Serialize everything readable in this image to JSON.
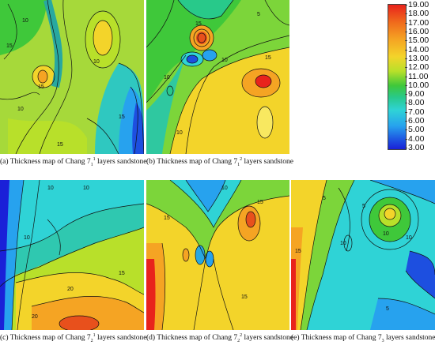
{
  "panels": [
    {
      "id": "a",
      "caption_pre": "(a) Thickness map of Chang 7",
      "caption_sub": "1",
      "caption_sup": "1",
      "caption_post": " layers sandstone",
      "contour_labels": [
        "10",
        "15",
        "10",
        "15",
        "10",
        "15",
        "15"
      ]
    },
    {
      "id": "b",
      "caption_pre": "(b) Thickness map of Chang 7",
      "caption_sub": "1",
      "caption_sup": "2",
      "caption_post": " layers sandstone",
      "contour_labels": [
        "5",
        "15",
        "10",
        "10",
        "15",
        "10"
      ]
    },
    {
      "id": "c",
      "caption_pre": "(c) Thickness map of Chang 7",
      "caption_sub": "2",
      "caption_sup": "1",
      "caption_post": " layers sandstone",
      "contour_labels": [
        "10",
        "10",
        "10",
        "20",
        "20",
        "15"
      ]
    },
    {
      "id": "d",
      "caption_pre": "(d) Thickness map of Chang 7",
      "caption_sub": "2",
      "caption_sup": "2",
      "caption_post": " layers sandstone",
      "contour_labels": [
        "10",
        "15",
        "15",
        "15"
      ]
    },
    {
      "id": "e",
      "caption_pre": "(e) Thickness map of Chang 7",
      "caption_sub": "3",
      "caption_sup": "",
      "caption_post": " layers sandstone",
      "contour_labels": [
        "5",
        "5",
        "10",
        "10",
        "15",
        "10",
        "5"
      ]
    }
  ],
  "legend": {
    "labels": [
      "19.00",
      "18.00",
      "17.00",
      "16.00",
      "15.00",
      "14.00",
      "13.00",
      "12.00",
      "11.00",
      "10.00",
      "9.00",
      "8.00",
      "7.00",
      "6.00",
      "5.00",
      "4.00",
      "3.00"
    ],
    "max": 19,
    "min": 3
  },
  "colors": {
    "high": "#e8231c",
    "mid_high": "#f5a423",
    "mid": "#3fc83a",
    "mid_low": "#2fd3d6",
    "low": "#1a20d8"
  }
}
